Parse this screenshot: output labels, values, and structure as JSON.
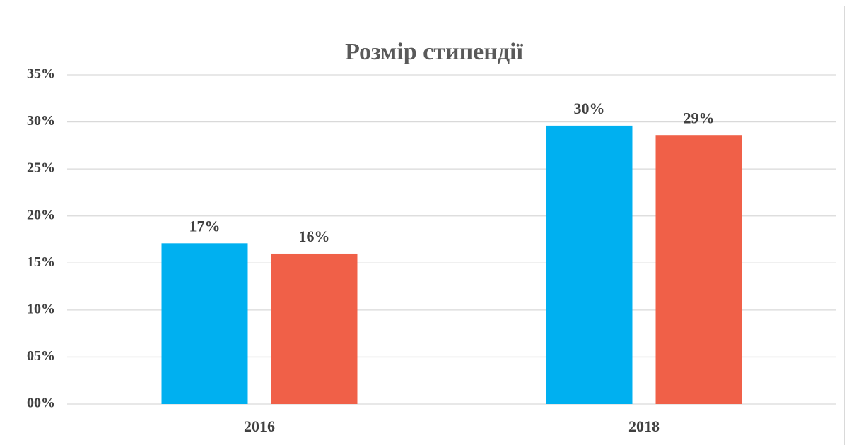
{
  "chart_data": {
    "type": "bar",
    "title": "Розмір стипендії",
    "categories": [
      "2016",
      "2018"
    ],
    "series": [
      {
        "color": "#00b0f0",
        "values": [
          17.1,
          29.6
        ],
        "value_labels": [
          "17%",
          "30%"
        ]
      },
      {
        "color": "#f06048",
        "values": [
          16.0,
          28.6
        ],
        "value_labels": [
          "16%",
          "29%"
        ]
      }
    ],
    "ylim": [
      0,
      35
    ],
    "yticks": [
      {
        "value": 0,
        "label": "00%"
      },
      {
        "value": 5,
        "label": "05%"
      },
      {
        "value": 10,
        "label": "10%"
      },
      {
        "value": 15,
        "label": "15%"
      },
      {
        "value": 20,
        "label": "20%"
      },
      {
        "value": 25,
        "label": "25%"
      },
      {
        "value": 30,
        "label": "30%"
      },
      {
        "value": 35,
        "label": "35%"
      }
    ],
    "grid": true
  }
}
